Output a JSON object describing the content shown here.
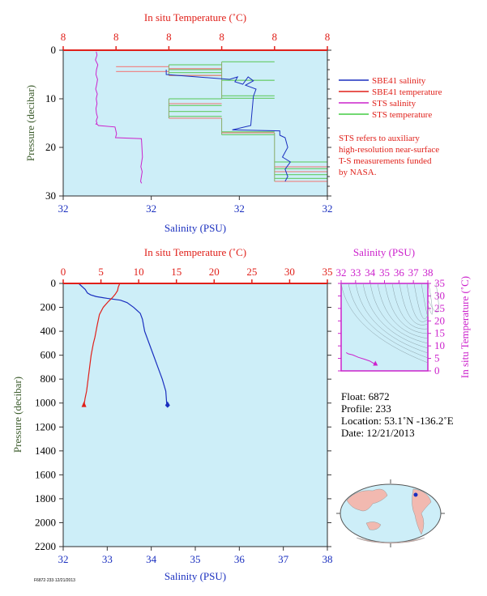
{
  "colors": {
    "panel_bg": "#cdeef8",
    "sbe41_salinity": "#1a2fbf",
    "sbe41_temperature": "#e0201a",
    "sts_salinity": "#cc22cc",
    "sts_temperature": "#44cc44",
    "axis_red": "#e0201a",
    "axis_blue": "#1a2fbf",
    "axis_magenta": "#cc22cc",
    "axis_green": "#3b5b2b"
  },
  "chart_data": [
    {
      "type": "line",
      "name": "near-surface",
      "title_top": "In situ Temperature (˚C)",
      "top_ticks": [
        "8",
        "8",
        "8",
        "8",
        "8",
        "8"
      ],
      "xlabel": "Salinity (PSU)",
      "bottom_ticks": [
        "32",
        "32",
        "32",
        "32"
      ],
      "ylabel": "Pressure (decibar)",
      "ylim": [
        0,
        30
      ],
      "y_ticks": [
        "0",
        "10",
        "20",
        "30"
      ],
      "legend": [
        {
          "label": "SBE41 salinity",
          "color": "#1a2fbf"
        },
        {
          "label": "SBE41 temperature",
          "color": "#e0201a"
        },
        {
          "label": "STS salinity",
          "color": "#cc22cc"
        },
        {
          "label": "STS temperature",
          "color": "#44cc44"
        }
      ],
      "note": [
        "STS refers to auxiliary",
        "high-resolution near-surface",
        "T-S measurements funded",
        "by NASA."
      ],
      "series": [
        {
          "key": "sts_salinity",
          "x": [
            0.125,
            0.128,
            0.122,
            0.131,
            0.126,
            0.124,
            0.13,
            0.127,
            0.123,
            0.129,
            0.125,
            0.128,
            0.124,
            0.126,
            0.13,
            0.127,
            0.125,
            0.128,
            0.124,
            0.13,
            0.133,
            0.196,
            0.202,
            0.198,
            0.296,
            0.297,
            0.3,
            0.294,
            0.299,
            0.296,
            0.293,
            0.297
          ],
          "y": [
            0.3,
            1,
            2,
            3,
            4,
            5,
            6,
            7,
            8,
            9,
            10,
            11,
            12,
            13,
            13.8,
            14.2,
            14.6,
            15,
            15.2,
            15.3,
            15.5,
            15.8,
            17.2,
            18,
            18.2,
            19,
            22,
            24,
            25,
            26,
            27,
            27.4
          ]
        },
        {
          "key": "sbe41_salinity",
          "x": [
            0.39,
            0.39,
            0.63,
            0.66,
            0.65,
            0.68,
            0.7,
            0.72,
            0.69,
            0.73,
            0.72,
            0.71,
            0.64,
            0.82,
            0.82,
            0.84,
            0.85,
            0.83,
            0.86,
            0.84,
            0.85,
            0.84
          ],
          "y": [
            4,
            5,
            6,
            5.5,
            6.5,
            7,
            5.5,
            6.3,
            7.2,
            8,
            9.5,
            15.5,
            16.4,
            16.6,
            17.5,
            18,
            20,
            22,
            23,
            24.5,
            26,
            27
          ]
        }
      ],
      "sts_temp_steps": [
        {
          "x": [
            0.4,
            0.6
          ],
          "y": 3
        },
        {
          "x": [
            0.4,
            0.6
          ],
          "y": 4
        },
        {
          "x": [
            0.4,
            0.6
          ],
          "y": 4.6
        },
        {
          "x": [
            0.4,
            0.6
          ],
          "y": 5.2
        },
        {
          "x": [
            0.6,
            0.8
          ],
          "y": 2.4
        },
        {
          "x": [
            0.6,
            0.8
          ],
          "y": 6.2
        },
        {
          "x": [
            0.6,
            0.8
          ],
          "y": 9.4
        },
        {
          "x": [
            0.6,
            0.8
          ],
          "y": 9.9
        },
        {
          "x": [
            0.4,
            0.6
          ],
          "y": 10
        },
        {
          "x": [
            0.4,
            0.6
          ],
          "y": 11.4
        },
        {
          "x": [
            0.4,
            0.6
          ],
          "y": 12.6
        },
        {
          "x": [
            0.4,
            0.6
          ],
          "y": 13.6
        },
        {
          "x": [
            0.6,
            0.8
          ],
          "y": 16.8
        },
        {
          "x": [
            0.6,
            0.8
          ],
          "y": 17.4
        },
        {
          "x": [
            0.8,
            1.0
          ],
          "y": 23
        },
        {
          "x": [
            0.8,
            1.0
          ],
          "y": 24.4
        },
        {
          "x": [
            0.8,
            1.0
          ],
          "y": 25.6
        },
        {
          "x": [
            0.8,
            1.0
          ],
          "y": 26.4
        }
      ],
      "sbe_temp_steps": [
        {
          "x": [
            0.2,
            0.4
          ],
          "y": 3.4
        },
        {
          "x": [
            0.2,
            0.4
          ],
          "y": 4.4
        },
        {
          "x": [
            0.4,
            0.6
          ],
          "y": 3.8
        },
        {
          "x": [
            0.4,
            0.6
          ],
          "y": 5.2
        },
        {
          "x": [
            0.4,
            0.6
          ],
          "y": 11
        },
        {
          "x": [
            0.4,
            0.6
          ],
          "y": 14
        },
        {
          "x": [
            0.6,
            0.8
          ],
          "y": 17
        },
        {
          "x": [
            0.8,
            1.0
          ],
          "y": 24
        },
        {
          "x": [
            0.8,
            1.0
          ],
          "y": 25
        },
        {
          "x": [
            0.8,
            1.0
          ],
          "y": 27
        }
      ]
    },
    {
      "type": "line",
      "name": "full-profile",
      "title_top": "In situ Temperature (˚C)",
      "xlabel": "Salinity (PSU)",
      "ylabel": "Pressure (decibar)",
      "salinity_range": [
        32,
        38
      ],
      "temperature_range": [
        0,
        35
      ],
      "ylim": [
        0,
        2200
      ],
      "top_ticks": [
        "0",
        "5",
        "10",
        "15",
        "20",
        "25",
        "30",
        "35"
      ],
      "bottom_ticks": [
        "32",
        "33",
        "34",
        "35",
        "36",
        "37",
        "38"
      ],
      "y_ticks": [
        "0",
        "200",
        "400",
        "600",
        "800",
        "1000",
        "1200",
        "1400",
        "1600",
        "1800",
        "2000",
        "2200"
      ],
      "salinity": {
        "s": [
          32.35,
          32.5,
          32.55,
          32.62,
          32.75,
          33.0,
          33.3,
          33.45,
          33.6,
          33.75,
          33.8,
          33.85,
          33.95,
          34.05,
          34.15,
          34.25,
          34.33,
          34.35,
          34.37
        ],
        "p": [
          0,
          50,
          80,
          95,
          110,
          125,
          140,
          160,
          200,
          250,
          300,
          400,
          500,
          600,
          700,
          800,
          900,
          1000,
          1020
        ]
      },
      "temperature": {
        "t": [
          7.5,
          7.3,
          7.2,
          6.9,
          6.5,
          6.0,
          5.3,
          4.8,
          4.5,
          4.2,
          4.0,
          3.7,
          3.5,
          3.3,
          3.1,
          2.9,
          2.8,
          2.75
        ],
        "p": [
          0,
          30,
          60,
          90,
          120,
          150,
          200,
          260,
          350,
          450,
          500,
          600,
          700,
          800,
          900,
          960,
          1000,
          1020
        ]
      }
    },
    {
      "type": "line",
      "name": "t-s-diagram",
      "title": "Salinity (PSU)",
      "ylabel": "In situ Temperature (˚C)",
      "x_ticks": [
        "32",
        "33",
        "34",
        "35",
        "36",
        "37",
        "38"
      ],
      "y_ticks": [
        "0",
        "5",
        "10",
        "15",
        "20",
        "25",
        "30",
        "35"
      ],
      "xlim": [
        32,
        38
      ],
      "ylim": [
        0,
        35
      ],
      "ts_line": {
        "s": [
          32.35,
          32.5,
          32.8,
          33.2,
          33.6,
          34.0,
          34.2,
          34.37
        ],
        "t": [
          7.3,
          6.8,
          6.4,
          5.4,
          4.7,
          3.9,
          3.2,
          2.75
        ]
      }
    }
  ],
  "float_info": {
    "float": "Float: 6872",
    "profile": "Profile: 233",
    "location": "Location: 53.1˚N -136.2˚E",
    "date": "Date: 12/21/2013"
  },
  "footer_code": "F6872·233·12/21/2013"
}
